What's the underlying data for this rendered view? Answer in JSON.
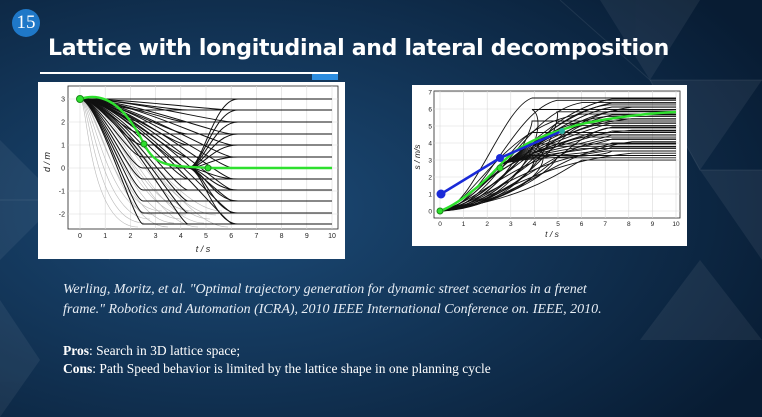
{
  "slide": {
    "number": "15",
    "title": "Lattice with longitudinal and lateral decomposition"
  },
  "figure_left": {
    "y_label": "d / m",
    "x_label": "t / s",
    "x_ticks": [
      "0",
      "1",
      "2",
      "3",
      "4",
      "5",
      "6",
      "7",
      "8",
      "9",
      "10"
    ],
    "y_ticks": [
      "3",
      "2",
      "1",
      "0",
      "-1",
      "-2"
    ]
  },
  "figure_right": {
    "y_label": "s / m/s",
    "x_label": "t / s",
    "x_ticks": [
      "0",
      "1",
      "2",
      "3",
      "4",
      "5",
      "6",
      "7",
      "8",
      "9",
      "10"
    ],
    "y_ticks": [
      "7",
      "6",
      "5",
      "4",
      "3",
      "2",
      "1",
      "0"
    ]
  },
  "reference": {
    "line1": "Werling, Moritz, et al. \"Optimal trajectory generation for dynamic street scenarios in a frenet",
    "line2": "frame.\" Robotics and Automation (ICRA), 2010 IEEE International Conference on. IEEE, 2010."
  },
  "pros_cons": {
    "pros_label": "Pros",
    "pros_text": ": Search in 3D lattice space;",
    "cons_label": "Cons",
    "cons_text": ": Path Speed behavior is limited by the lattice shape in one planning cycle"
  },
  "colors": {
    "background": "#0d2a46",
    "accent": "#2c8de0",
    "best_path": "#2ee02e",
    "marker": "#1a2ad8"
  }
}
